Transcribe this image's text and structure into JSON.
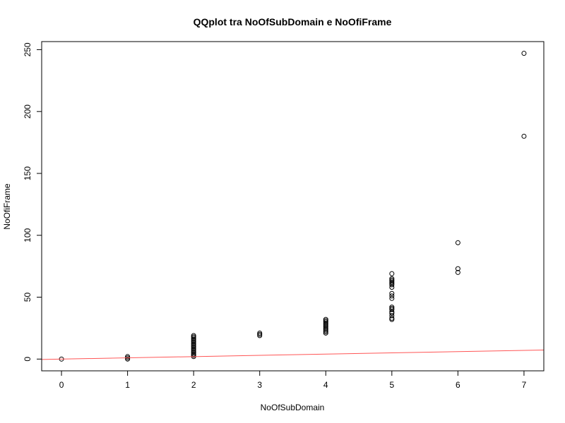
{
  "chart_data": {
    "type": "scatter",
    "title": "QQplot tra NoOfSubDomain e NoOfiFrame",
    "xlabel": "NoOfSubDomain",
    "ylabel": "NoOfiFrame",
    "xlim": [
      -0.3,
      7.3
    ],
    "ylim": [
      -9.5,
      256.5
    ],
    "xticks": [
      0,
      1,
      2,
      3,
      4,
      5,
      6,
      7
    ],
    "yticks": [
      0,
      50,
      100,
      150,
      200,
      250
    ],
    "grid": false,
    "reference_line": {
      "slope": 1,
      "intercept": 0,
      "color": "#ff5555"
    },
    "point_style": {
      "shape": "open-circle",
      "color": "#000000"
    },
    "points": [
      {
        "x": 0,
        "y": 0
      },
      {
        "x": 1,
        "y": 0
      },
      {
        "x": 1,
        "y": 1
      },
      {
        "x": 1,
        "y": 2
      },
      {
        "x": 2,
        "y": 2
      },
      {
        "x": 2,
        "y": 3
      },
      {
        "x": 2,
        "y": 4
      },
      {
        "x": 2,
        "y": 5
      },
      {
        "x": 2,
        "y": 6
      },
      {
        "x": 2,
        "y": 7
      },
      {
        "x": 2,
        "y": 8
      },
      {
        "x": 2,
        "y": 9
      },
      {
        "x": 2,
        "y": 10
      },
      {
        "x": 2,
        "y": 11
      },
      {
        "x": 2,
        "y": 12
      },
      {
        "x": 2,
        "y": 13
      },
      {
        "x": 2,
        "y": 14
      },
      {
        "x": 2,
        "y": 15
      },
      {
        "x": 2,
        "y": 16
      },
      {
        "x": 2,
        "y": 17
      },
      {
        "x": 2,
        "y": 18
      },
      {
        "x": 2,
        "y": 19
      },
      {
        "x": 3,
        "y": 19
      },
      {
        "x": 3,
        "y": 20
      },
      {
        "x": 3,
        "y": 21
      },
      {
        "x": 4,
        "y": 21
      },
      {
        "x": 4,
        "y": 22
      },
      {
        "x": 4,
        "y": 23
      },
      {
        "x": 4,
        "y": 24
      },
      {
        "x": 4,
        "y": 25
      },
      {
        "x": 4,
        "y": 26
      },
      {
        "x": 4,
        "y": 27
      },
      {
        "x": 4,
        "y": 28
      },
      {
        "x": 4,
        "y": 29
      },
      {
        "x": 4,
        "y": 30
      },
      {
        "x": 4,
        "y": 31
      },
      {
        "x": 4,
        "y": 32
      },
      {
        "x": 5,
        "y": 32
      },
      {
        "x": 5,
        "y": 33
      },
      {
        "x": 5,
        "y": 35
      },
      {
        "x": 5,
        "y": 37
      },
      {
        "x": 5,
        "y": 38
      },
      {
        "x": 5,
        "y": 40
      },
      {
        "x": 5,
        "y": 41
      },
      {
        "x": 5,
        "y": 42
      },
      {
        "x": 5,
        "y": 49
      },
      {
        "x": 5,
        "y": 51
      },
      {
        "x": 5,
        "y": 53
      },
      {
        "x": 5,
        "y": 58
      },
      {
        "x": 5,
        "y": 60
      },
      {
        "x": 5,
        "y": 61
      },
      {
        "x": 5,
        "y": 62
      },
      {
        "x": 5,
        "y": 63
      },
      {
        "x": 5,
        "y": 64
      },
      {
        "x": 5,
        "y": 65
      },
      {
        "x": 5,
        "y": 69
      },
      {
        "x": 6,
        "y": 70
      },
      {
        "x": 6,
        "y": 73
      },
      {
        "x": 6,
        "y": 94
      },
      {
        "x": 7,
        "y": 180
      },
      {
        "x": 7,
        "y": 247
      }
    ]
  }
}
